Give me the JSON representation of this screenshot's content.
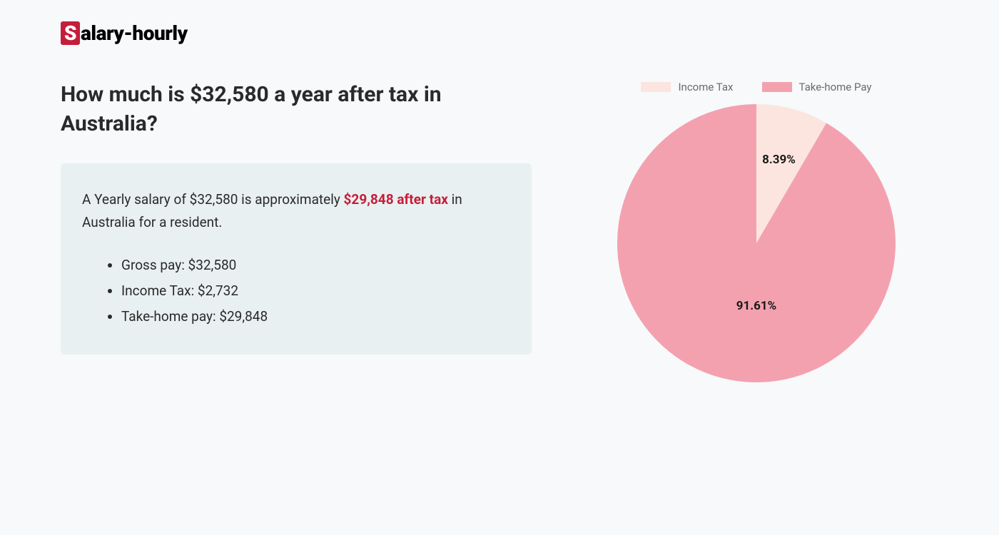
{
  "logo": {
    "initial": "S",
    "rest": "alary-hourly"
  },
  "heading": "How much is $32,580 a year after tax in Australia?",
  "summary": {
    "prefix": "A Yearly salary of $32,580 is approximately ",
    "highlight": "$29,848 after tax",
    "suffix": " in Australia for a resident."
  },
  "details": [
    "Gross pay: $32,580",
    "Income Tax: $2,732",
    "Take-home pay: $29,848"
  ],
  "chart": {
    "type": "pie",
    "radius": 195,
    "background_color": "#f7f9fa",
    "slices": [
      {
        "label": "Income Tax",
        "value": 8.39,
        "display": "8.39%",
        "color": "#fce5de"
      },
      {
        "label": "Take-home Pay",
        "value": 91.61,
        "display": "91.61%",
        "color": "#f4a1af"
      }
    ],
    "legend": {
      "swatch_width": 42,
      "swatch_height": 14,
      "label_color": "#6b6b6b",
      "label_fontsize": 15
    },
    "slice_label": {
      "fontsize": 17,
      "fontweight": 700,
      "color": "#1a1a1a"
    }
  },
  "colors": {
    "page_bg": "#f7f9fa",
    "summary_box_bg": "#e9f0f1",
    "text": "#2a2a2a",
    "highlight": "#c41e3a",
    "logo_bg": "#c41e3a"
  },
  "typography": {
    "heading_fontsize": 30,
    "body_fontsize": 19,
    "logo_fontsize": 28
  }
}
